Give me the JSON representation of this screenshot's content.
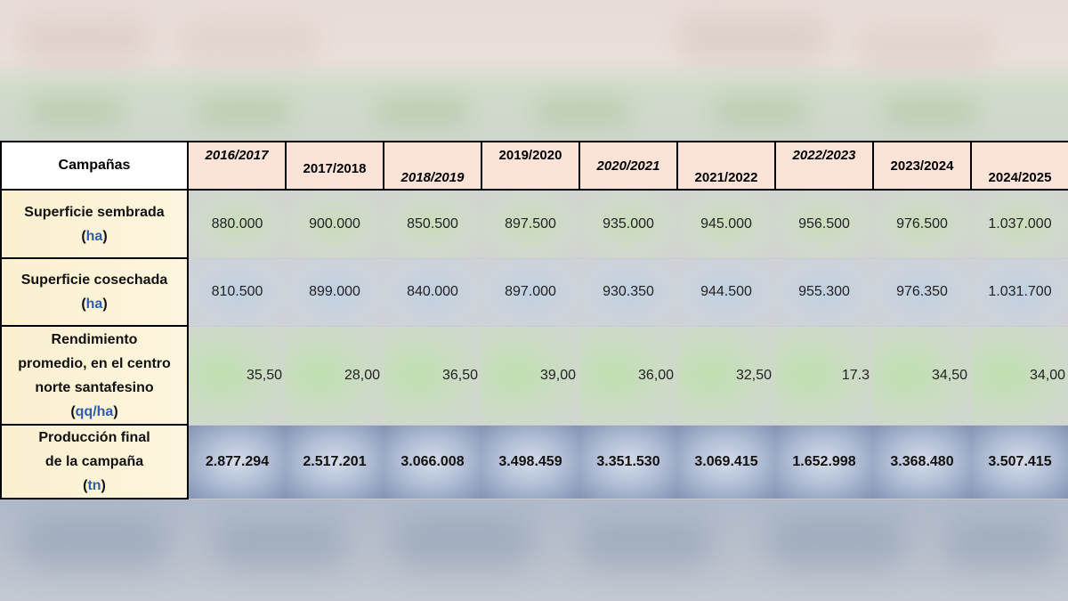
{
  "table": {
    "corner_label": "Campañas",
    "columns": [
      "2016/2017",
      "2017/2018",
      "2018/2019",
      "2019/2020",
      "2020/2021",
      "2021/2022",
      "2022/2023",
      "2023/2024",
      "2024/2025"
    ],
    "rows": {
      "sembrada": {
        "label_lines": [
          "Superficie sembrada"
        ],
        "unit": "ha",
        "values": [
          "880.000",
          "900.000",
          "850.500",
          "897.500",
          "935.000",
          "945.000",
          "956.500",
          "976.500",
          "1.037.000"
        ]
      },
      "cosechada": {
        "label_lines": [
          "Superficie cosechada"
        ],
        "unit": "ha",
        "values": [
          "810.500",
          "899.000",
          "840.000",
          "897.000",
          "930.350",
          "944.500",
          "955.300",
          "976.350",
          "1.031.700"
        ]
      },
      "rendimiento": {
        "label_lines": [
          "Rendimiento",
          "promedio, en el centro",
          "norte santafesino"
        ],
        "unit": "qq/ha",
        "values": [
          "35,50",
          "28,00",
          "36,50",
          "39,00",
          "36,00",
          "32,50",
          "17.3",
          "34,50",
          "34,00"
        ]
      },
      "produccion": {
        "label_lines": [
          "Producción final",
          "de la campaña"
        ],
        "unit": "tn",
        "values": [
          "2.877.294",
          "2.517.201",
          "3.066.008",
          "3.498.459",
          "3.351.530",
          "3.069.415",
          "1.652.998",
          "3.368.480",
          "3.507.415"
        ]
      }
    }
  },
  "chart_data": {
    "type": "table",
    "title": "",
    "columns": [
      "Campañas",
      "2016/2017",
      "2017/2018",
      "2018/2019",
      "2019/2020",
      "2020/2021",
      "2021/2022",
      "2022/2023",
      "2023/2024",
      "2024/2025"
    ],
    "rows": [
      [
        "Superficie sembrada (ha)",
        880000,
        900000,
        850500,
        897500,
        935000,
        945000,
        956500,
        976500,
        1037000
      ],
      [
        "Superficie cosechada (ha)",
        810500,
        899000,
        840000,
        897000,
        930350,
        944500,
        955300,
        976350,
        1031700
      ],
      [
        "Rendimiento promedio, en el centro norte santafesino (qq/ha)",
        35.5,
        28.0,
        36.5,
        39.0,
        36.0,
        32.5,
        17.3,
        34.5,
        34.0
      ],
      [
        "Producción final de la campaña (tn)",
        2877294,
        2517201,
        3066008,
        3498459,
        3351530,
        3069415,
        1652998,
        3368480,
        3507415
      ]
    ]
  },
  "colors": {
    "header_fill": "#fbe3d8",
    "rowhead_fill": "#fbefcf",
    "unit_text": "#2f5ea8",
    "sembrada_fill": "#c9dcb9",
    "cosechada_fill": "#bfd0e2",
    "rendimiento_fill": "#bfe0b0",
    "produccion_fill": "#8393b3"
  }
}
